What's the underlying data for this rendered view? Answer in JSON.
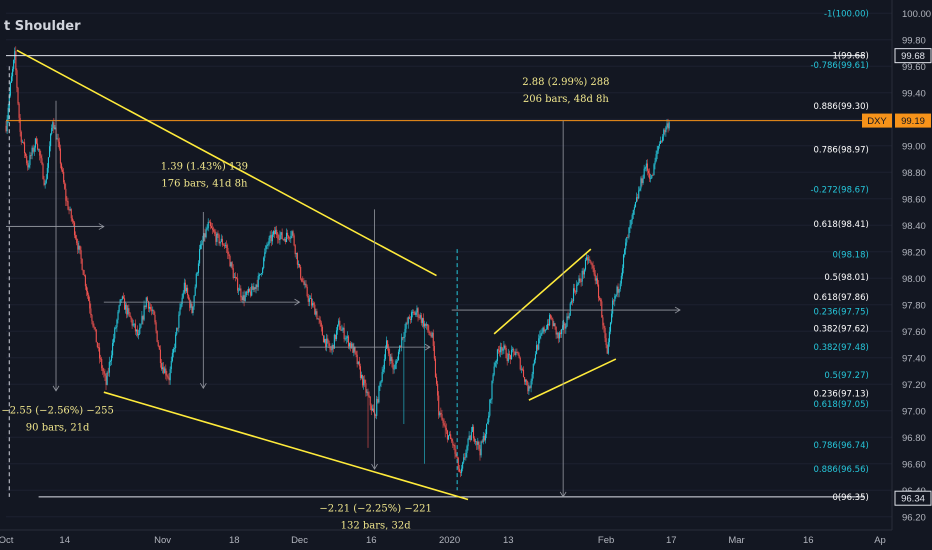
{
  "chart_data": {
    "type": "candlestick",
    "title": "t Shoulder",
    "symbol": "DXY",
    "y_axis": {
      "min": 96.1,
      "max": 100.1,
      "ticks": [
        96.2,
        96.4,
        96.6,
        96.8,
        97.0,
        97.2,
        97.4,
        97.6,
        97.8,
        98.0,
        98.2,
        98.4,
        98.6,
        98.8,
        99.0,
        99.2,
        99.4,
        99.6,
        99.8,
        100.0
      ],
      "tick_labels": [
        "96.20",
        "96.40",
        "96.60",
        "96.80",
        "97.00",
        "97.20",
        "97.40",
        "97.60",
        "97.80",
        "98.00",
        "98.20",
        "98.40",
        "98.60",
        "98.80",
        "99.00",
        "99.20",
        "99.40",
        "99.60",
        "99.80",
        "100.00"
      ]
    },
    "x_axis": {
      "min": 0,
      "max": 1630,
      "ticks": [
        {
          "x": 0,
          "label": "Oct"
        },
        {
          "x": 108,
          "label": "14"
        },
        {
          "x": 288,
          "label": "Nov"
        },
        {
          "x": 420,
          "label": "18"
        },
        {
          "x": 540,
          "label": "Dec"
        },
        {
          "x": 672,
          "label": "16"
        },
        {
          "x": 816,
          "label": "2020"
        },
        {
          "x": 924,
          "label": "13"
        },
        {
          "x": 1104,
          "label": "Feb"
        },
        {
          "x": 1224,
          "label": "17"
        },
        {
          "x": 1344,
          "label": "Mar"
        },
        {
          "x": 1476,
          "label": "16"
        },
        {
          "x": 1608,
          "label": "Ap"
        }
      ]
    },
    "price_markers": [
      {
        "label": "99.68",
        "value": 99.68,
        "style": "white"
      },
      {
        "label": "DXY",
        "value": 99.19,
        "style": "orange-symbol"
      },
      {
        "label": "99.19",
        "value": 99.19,
        "style": "orange"
      },
      {
        "label": "96.34",
        "value": 96.34,
        "style": "white"
      }
    ],
    "fib_levels": [
      {
        "label": "-1(100.00)",
        "value": 100.0,
        "color": "#26c6da",
        "x": 1580
      },
      {
        "label": "1(99.68)",
        "value": 99.68,
        "color": "#ffffff",
        "x": 1580
      },
      {
        "label": "-0.786(99.61)",
        "value": 99.61,
        "color": "#26c6da",
        "x": 1580
      },
      {
        "label": "0.886(99.30)",
        "value": 99.3,
        "color": "#ffffff",
        "x": 1580
      },
      {
        "label": "0.786(98.97)",
        "value": 98.97,
        "color": "#ffffff",
        "x": 1580
      },
      {
        "label": "-0.272(98.67)",
        "value": 98.67,
        "color": "#26c6da",
        "x": 1580
      },
      {
        "label": "0.618(98.41)",
        "value": 98.41,
        "color": "#ffffff",
        "x": 1580
      },
      {
        "label": "0(98.18)",
        "value": 98.18,
        "color": "#26c6da",
        "x": 1580
      },
      {
        "label": "0.5(98.01)",
        "value": 98.01,
        "color": "#ffffff",
        "x": 1580
      },
      {
        "label": "0.618(97.86)",
        "value": 97.86,
        "color": "#ffffff",
        "x": 1580
      },
      {
        "label": "0.236(97.75)",
        "value": 97.75,
        "color": "#26c6da",
        "x": 1580
      },
      {
        "label": "0.382(97.62)",
        "value": 97.62,
        "color": "#ffffff",
        "x": 1580
      },
      {
        "label": "0.382(97.48)",
        "value": 97.48,
        "color": "#26c6da",
        "x": 1580
      },
      {
        "label": "0.5(97.27)",
        "value": 97.27,
        "color": "#26c6da",
        "x": 1580
      },
      {
        "label": "0.236(97.13)",
        "value": 97.13,
        "color": "#ffffff",
        "x": 1580
      },
      {
        "label": "0.618(97.05)",
        "value": 97.05,
        "color": "#26c6da",
        "x": 1580
      },
      {
        "label": "0.786(96.74)",
        "value": 96.74,
        "color": "#26c6da",
        "x": 1580
      },
      {
        "label": "0.886(96.56)",
        "value": 96.56,
        "color": "#26c6da",
        "x": 1580
      },
      {
        "label": "0(96.35)",
        "value": 96.35,
        "color": "#ffffff",
        "x": 1580
      }
    ],
    "trendlines": [
      {
        "name": "channel-upper-line",
        "x1": 20,
        "y1": 99.72,
        "x2": 792,
        "y2": 98.02,
        "color": "#ffeb3b"
      },
      {
        "name": "channel-lower-line",
        "x1": 180,
        "y1": 97.14,
        "x2": 850,
        "y2": 96.33,
        "color": "#ffeb3b"
      },
      {
        "name": "rising-wedge-upper-line",
        "x1": 898,
        "y1": 97.58,
        "x2": 1076,
        "y2": 98.22,
        "color": "#ffeb3b"
      },
      {
        "name": "rising-wedge-lower-line",
        "x1": 962,
        "y1": 97.08,
        "x2": 1122,
        "y2": 97.39,
        "color": "#ffeb3b"
      }
    ],
    "h_lines": [
      {
        "name": "top-horizontal-line",
        "value": 99.68,
        "x1": 0,
        "x2": 1580,
        "color": "#e0e3eb"
      },
      {
        "name": "bottom-horizontal-line",
        "value": 96.35,
        "x1": 60,
        "x2": 1580,
        "color": "#e0e3eb"
      },
      {
        "name": "current-price-line",
        "value": 99.19,
        "x1": 0,
        "x2": 1580,
        "color": "#f7931a"
      }
    ],
    "measures": [
      {
        "name": "measure-1",
        "x": 92,
        "y1": 99.34,
        "y2": 97.15,
        "hx1": 0,
        "hx2": 180,
        "hy": 98.39
      },
      {
        "name": "measure-2",
        "x": 363,
        "y1": 98.5,
        "y2": 97.17,
        "hx1": 180,
        "hx2": 540,
        "hy": 97.82
      },
      {
        "name": "measure-3",
        "x": 678,
        "y1": 98.52,
        "y2": 96.56,
        "hx1": 540,
        "hx2": 780,
        "hy": 97.48
      },
      {
        "name": "measure-4",
        "x": 1025,
        "y1": 99.19,
        "y2": 96.35,
        "hx1": 820,
        "hx2": 1240,
        "hy": 97.76
      }
    ],
    "annotations": [
      {
        "name": "measure-1-label",
        "lines": [
          "−2.55 (−2.56%) −255",
          "90 bars, 21d"
        ],
        "x": 95,
        "y": 96.98
      },
      {
        "name": "measure-2-label",
        "lines": [
          "1.39 (1.43%) 139",
          "176 bars, 41d 8h"
        ],
        "x": 365,
        "y": 98.82
      },
      {
        "name": "measure-3-label",
        "lines": [
          "−2.21 (−2.25%) −221",
          "132 bars, 32d"
        ],
        "x": 680,
        "y": 96.24
      },
      {
        "name": "measure-4-label",
        "lines": [
          "2.88 (2.99%) 288",
          "206 bars, 48d 8h"
        ],
        "x": 1030,
        "y": 99.46
      }
    ],
    "candle_anchors": [
      [
        0,
        99.15
      ],
      [
        8,
        99.45
      ],
      [
        16,
        99.68
      ],
      [
        26,
        99.1
      ],
      [
        40,
        98.85
      ],
      [
        56,
        99.05
      ],
      [
        72,
        98.7
      ],
      [
        86,
        99.2
      ],
      [
        96,
        99.0
      ],
      [
        110,
        98.6
      ],
      [
        124,
        98.4
      ],
      [
        140,
        98.1
      ],
      [
        156,
        97.75
      ],
      [
        172,
        97.4
      ],
      [
        184,
        97.2
      ],
      [
        198,
        97.55
      ],
      [
        212,
        97.85
      ],
      [
        228,
        97.7
      ],
      [
        244,
        97.55
      ],
      [
        258,
        97.85
      ],
      [
        272,
        97.7
      ],
      [
        286,
        97.35
      ],
      [
        300,
        97.25
      ],
      [
        314,
        97.6
      ],
      [
        328,
        97.95
      ],
      [
        342,
        97.75
      ],
      [
        356,
        98.2
      ],
      [
        372,
        98.4
      ],
      [
        388,
        98.3
      ],
      [
        404,
        98.25
      ],
      [
        420,
        98.0
      ],
      [
        436,
        97.85
      ],
      [
        452,
        97.9
      ],
      [
        466,
        98.0
      ],
      [
        480,
        98.25
      ],
      [
        496,
        98.35
      ],
      [
        510,
        98.3
      ],
      [
        526,
        98.35
      ],
      [
        540,
        98.05
      ],
      [
        556,
        97.85
      ],
      [
        570,
        97.75
      ],
      [
        584,
        97.55
      ],
      [
        598,
        97.45
      ],
      [
        612,
        97.65
      ],
      [
        626,
        97.55
      ],
      [
        640,
        97.45
      ],
      [
        654,
        97.25
      ],
      [
        666,
        97.1
      ],
      [
        678,
        96.95
      ],
      [
        688,
        97.2
      ],
      [
        700,
        97.5
      ],
      [
        714,
        97.3
      ],
      [
        728,
        97.55
      ],
      [
        742,
        97.7
      ],
      [
        756,
        97.75
      ],
      [
        770,
        97.65
      ],
      [
        784,
        97.55
      ],
      [
        796,
        97.0
      ],
      [
        808,
        96.85
      ],
      [
        822,
        96.75
      ],
      [
        836,
        96.5
      ],
      [
        846,
        96.7
      ],
      [
        858,
        96.85
      ],
      [
        872,
        96.7
      ],
      [
        886,
        96.9
      ],
      [
        898,
        97.35
      ],
      [
        910,
        97.5
      ],
      [
        924,
        97.4
      ],
      [
        938,
        97.45
      ],
      [
        950,
        97.3
      ],
      [
        962,
        97.15
      ],
      [
        974,
        97.45
      ],
      [
        988,
        97.6
      ],
      [
        1002,
        97.7
      ],
      [
        1016,
        97.55
      ],
      [
        1030,
        97.65
      ],
      [
        1044,
        97.9
      ],
      [
        1058,
        98.0
      ],
      [
        1070,
        98.15
      ],
      [
        1082,
        98.05
      ],
      [
        1094,
        97.8
      ],
      [
        1106,
        97.4
      ],
      [
        1116,
        97.8
      ],
      [
        1128,
        97.95
      ],
      [
        1140,
        98.25
      ],
      [
        1152,
        98.45
      ],
      [
        1164,
        98.65
      ],
      [
        1176,
        98.85
      ],
      [
        1188,
        98.75
      ],
      [
        1200,
        99.0
      ],
      [
        1212,
        99.12
      ],
      [
        1222,
        99.2
      ]
    ]
  }
}
